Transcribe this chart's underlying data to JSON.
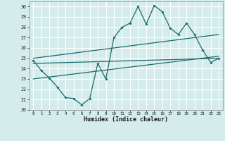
{
  "xlabel": "Humidex (Indice chaleur)",
  "bg_color": "#d4ecec",
  "grid_color": "#ffffff",
  "line_color": "#1a6b6b",
  "xlim": [
    -0.5,
    23.5
  ],
  "ylim": [
    20,
    30.5
  ],
  "xticks": [
    0,
    1,
    2,
    3,
    4,
    5,
    6,
    7,
    8,
    9,
    10,
    11,
    12,
    13,
    14,
    15,
    16,
    17,
    18,
    19,
    20,
    21,
    22,
    23
  ],
  "yticks": [
    20,
    21,
    22,
    23,
    24,
    25,
    26,
    27,
    28,
    29,
    30
  ],
  "main_x": [
    0,
    1,
    2,
    3,
    4,
    5,
    6,
    7,
    8,
    9,
    10,
    11,
    12,
    13,
    14,
    15,
    16,
    17,
    18,
    19,
    20,
    21,
    22,
    23
  ],
  "main_y": [
    24.8,
    23.8,
    23.1,
    22.2,
    21.2,
    21.1,
    20.5,
    21.1,
    24.5,
    23.0,
    27.0,
    28.0,
    28.4,
    30.0,
    28.3,
    30.1,
    29.5,
    27.9,
    27.3,
    28.4,
    27.3,
    25.8,
    24.6,
    25.0
  ],
  "upper_line_x": [
    0,
    23
  ],
  "upper_line_y": [
    25.0,
    27.3
  ],
  "lower_line_x": [
    0,
    23
  ],
  "lower_line_y": [
    24.5,
    25.0
  ],
  "mid_line_x": [
    0,
    23
  ],
  "mid_line_y": [
    23.0,
    25.2
  ]
}
